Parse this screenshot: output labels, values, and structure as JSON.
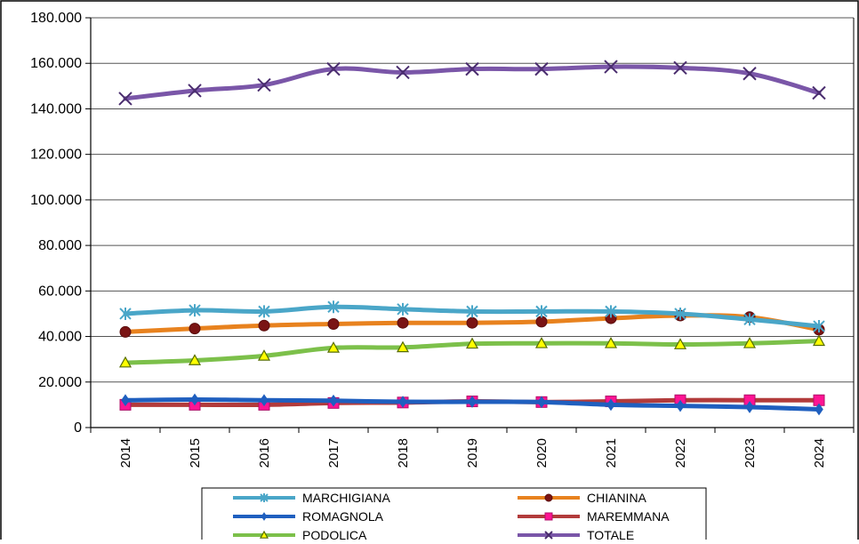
{
  "chart_data": {
    "type": "line",
    "title": "",
    "xlabel": "",
    "ylabel": "",
    "categories": [
      "2014",
      "2015",
      "2016",
      "2017",
      "2018",
      "2019",
      "2020",
      "2021",
      "2022",
      "2023",
      "2024"
    ],
    "ylim": [
      0,
      180000
    ],
    "yticks": [
      0,
      20000,
      40000,
      60000,
      80000,
      100000,
      120000,
      140000,
      160000,
      180000
    ],
    "ytick_labels": [
      "0",
      "20.000",
      "40.000",
      "60.000",
      "80.000",
      "100.000",
      "120.000",
      "140.000",
      "160.000",
      "180.000"
    ],
    "grid": "horizontal",
    "legend_position": "bottom",
    "series": [
      {
        "name": "MARCHIGIANA",
        "color": "#4aa6c8",
        "marker": "star",
        "values": [
          50000,
          51500,
          51000,
          53000,
          52000,
          51000,
          51000,
          51000,
          50000,
          47500,
          44500
        ]
      },
      {
        "name": "CHIANINA",
        "color": "#e8821e",
        "marker": "circle",
        "values": [
          42000,
          43500,
          44800,
          45500,
          46000,
          46000,
          46500,
          48000,
          49200,
          48500,
          43000
        ]
      },
      {
        "name": "ROMAGNOLA",
        "color": "#1f5fbf",
        "marker": "diamond",
        "values": [
          12000,
          12300,
          12000,
          11800,
          11300,
          11300,
          11200,
          10000,
          9500,
          9000,
          8000
        ]
      },
      {
        "name": "MAREMMANA",
        "color": "#b23b3b",
        "marker": "square",
        "values": [
          10000,
          10000,
          10000,
          10800,
          11000,
          11500,
          11200,
          11500,
          12000,
          12000,
          12000
        ]
      },
      {
        "name": "PODOLICA",
        "color": "#7cc04a",
        "marker": "triangle",
        "values": [
          28500,
          29500,
          31500,
          35000,
          35200,
          36800,
          37000,
          37000,
          36500,
          37000,
          38000
        ]
      },
      {
        "name": "TOTALE",
        "color": "#7a56a8",
        "marker": "x",
        "values": [
          144500,
          148000,
          150500,
          157500,
          156000,
          157500,
          157500,
          158500,
          158000,
          155500,
          147000
        ]
      }
    ]
  }
}
